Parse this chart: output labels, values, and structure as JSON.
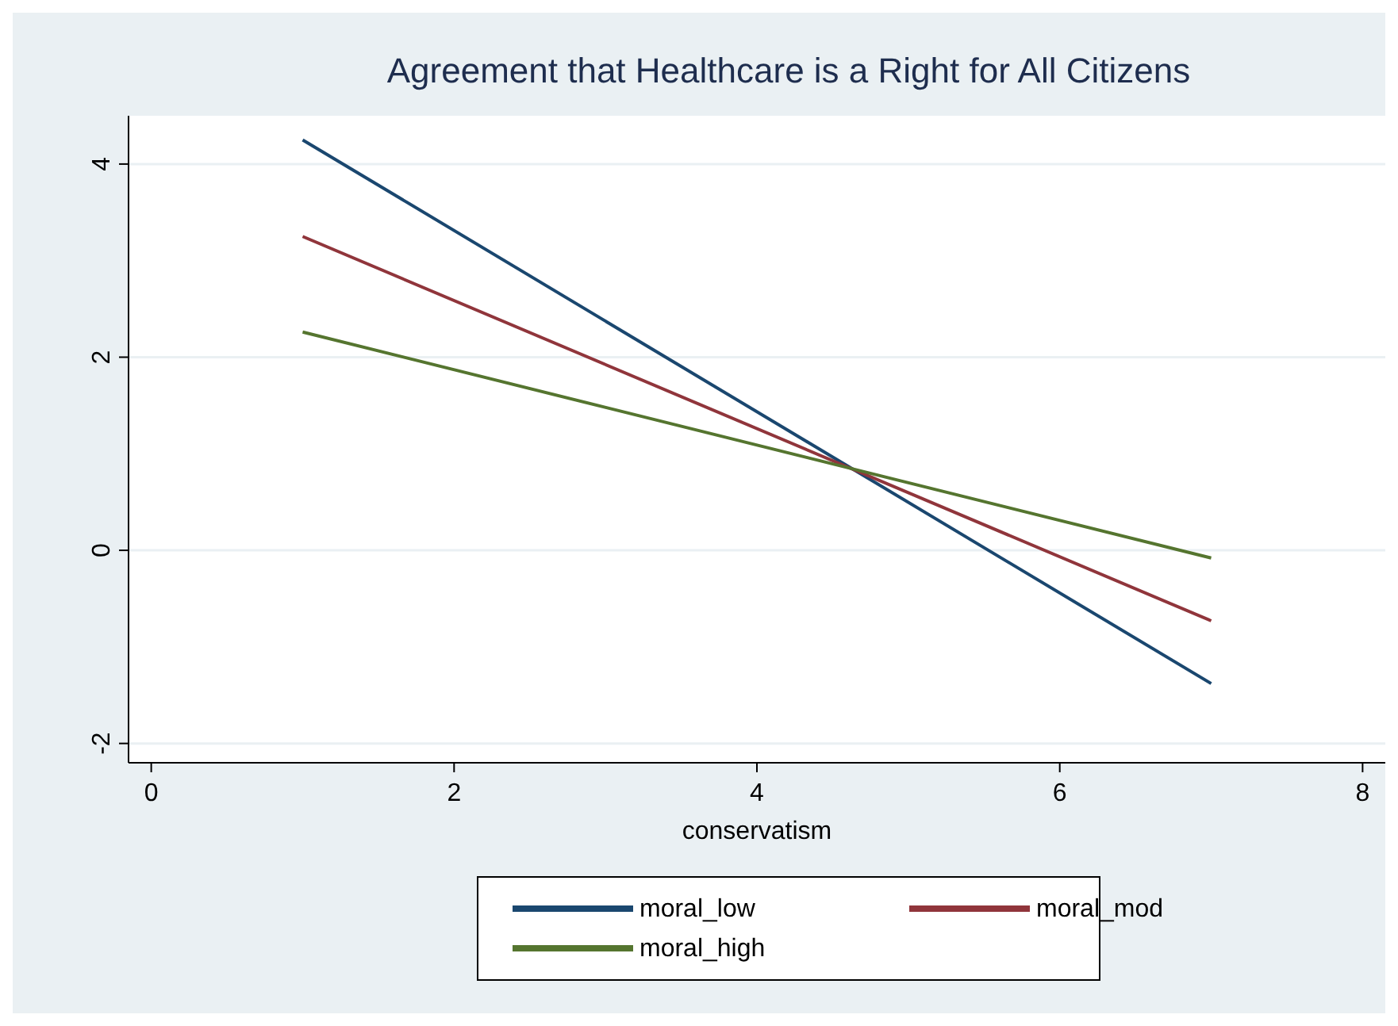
{
  "chart_data": {
    "type": "line",
    "title": "Agreement that Healthcare is a Right for All Citizens",
    "xlabel": "conservatism",
    "x": [
      1,
      7
    ],
    "series": [
      {
        "name": "moral_low",
        "color": "#1a476f",
        "values": [
          4.25,
          -1.38
        ]
      },
      {
        "name": "moral_mod",
        "color": "#90353b",
        "values": [
          3.25,
          -0.73
        ]
      },
      {
        "name": "moral_high",
        "color": "#55752f",
        "values": [
          2.26,
          -0.08
        ]
      }
    ],
    "xlim": [
      -0.15,
      8.15
    ],
    "ylim": [
      -2.2,
      4.5
    ],
    "xticks": [
      0,
      2,
      4,
      6,
      8
    ],
    "yticks": [
      -2,
      0,
      2,
      4
    ],
    "grid": "y",
    "legend": "bottom",
    "marker": "none",
    "line_style": "solid"
  }
}
